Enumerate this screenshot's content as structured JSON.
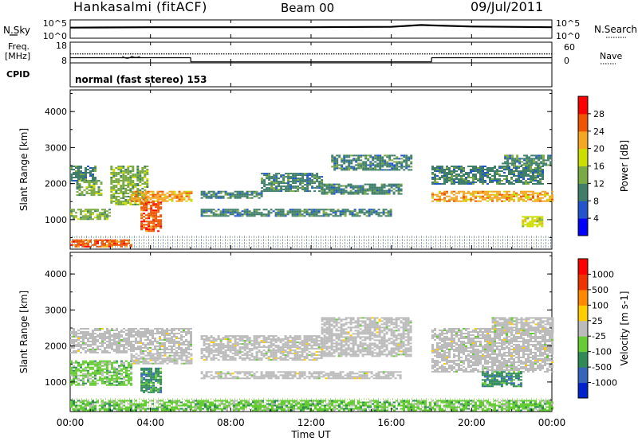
{
  "header": {
    "station": "Hankasalmi (fitACF)",
    "beam": "Beam 00",
    "date": "09/Jul/2011"
  },
  "left_labels": {
    "nsky": "N.Sky",
    "freq_line1": "Freq.",
    "freq_line2": "[MHz]",
    "cpid": "CPID"
  },
  "right_labels": {
    "nsearch": "N.Search",
    "nave": "Nave"
  },
  "cpid_text": "normal (fast stereo) 153",
  "colors": {
    "power_scale": [
      "#0000ff",
      "#2255cc",
      "#3f7f6a",
      "#7aaa44",
      "#ccdd00",
      "#f5a623",
      "#ee5500",
      "#ff0000"
    ],
    "velocity_scale": [
      "#0022cc",
      "#3366bb",
      "#2e8b57",
      "#66cc33",
      "#bbbbbb",
      "#ffcc00",
      "#ff8800",
      "#ee3300",
      "#ff0000"
    ],
    "ground_scatter": "#bbbbbb"
  },
  "chart_data": [
    {
      "type": "line",
      "name": "N.Sky / N.Search",
      "y_ticks_left": [
        "10^5",
        "10^0"
      ],
      "y_ticks_right": [
        "10^5",
        "10^0"
      ],
      "x": [
        0,
        4,
        8,
        12,
        16,
        17.5,
        18,
        20,
        24
      ],
      "values": [
        2.9,
        3.0,
        3.0,
        3.0,
        3.1,
        3.6,
        3.5,
        3.2,
        3.0
      ]
    },
    {
      "type": "line",
      "name": "Freq / Nave",
      "y_ticks_left": [
        "18",
        "8"
      ],
      "y_ticks_right": [
        "60",
        "0"
      ],
      "x": [
        0,
        2.8,
        3.2,
        6,
        6.01,
        18,
        18.01,
        24
      ],
      "freq_values": [
        10.5,
        10.5,
        10.5,
        10.5,
        8.5,
        8.5,
        10.5,
        10.5
      ],
      "nave_values": [
        26,
        26,
        26,
        26,
        26,
        26,
        26,
        26
      ]
    },
    {
      "type": "heatmap",
      "name": "Power",
      "ylabel": "Slant Range [km]",
      "yticks": [
        "1000",
        "2000",
        "3000",
        "4000"
      ],
      "ylim": [
        180,
        4600
      ],
      "xlim": [
        0,
        24
      ],
      "colorbar_label": "Power [dB]",
      "colorbar_ticks": [
        "4",
        "8",
        "12",
        "16",
        "20",
        "24",
        "28"
      ],
      "bands": [
        {
          "t0": 0.0,
          "t1": 1.2,
          "r0": 2100,
          "r1": 2500,
          "level": 2
        },
        {
          "t0": 0.3,
          "t1": 1.5,
          "r0": 1700,
          "r1": 2100,
          "level": 3
        },
        {
          "t0": 0.0,
          "t1": 2.0,
          "r0": 1000,
          "r1": 1300,
          "level": 3
        },
        {
          "t0": 0.0,
          "t1": 3.0,
          "r0": 250,
          "r1": 450,
          "level": 6
        },
        {
          "t0": 2.0,
          "t1": 3.8,
          "r0": 1400,
          "r1": 2500,
          "level": 3
        },
        {
          "t0": 3.0,
          "t1": 6.0,
          "r0": 1500,
          "r1": 1800,
          "level": 5
        },
        {
          "t0": 3.5,
          "t1": 4.5,
          "r0": 700,
          "r1": 1500,
          "level": 6
        },
        {
          "t0": 6.5,
          "t1": 16.0,
          "r0": 1100,
          "r1": 1300,
          "level": 2
        },
        {
          "t0": 6.5,
          "t1": 9.5,
          "r0": 1600,
          "r1": 1800,
          "level": 2
        },
        {
          "t0": 9.5,
          "t1": 12.5,
          "r0": 1800,
          "r1": 2300,
          "level": 2
        },
        {
          "t0": 12.5,
          "t1": 16.5,
          "r0": 1700,
          "r1": 2000,
          "level": 2
        },
        {
          "t0": 13.0,
          "t1": 17.0,
          "r0": 2400,
          "r1": 2800,
          "level": 2
        },
        {
          "t0": 18.0,
          "t1": 24.0,
          "r0": 1500,
          "r1": 1800,
          "level": 5
        },
        {
          "t0": 18.0,
          "t1": 23.5,
          "r0": 2000,
          "r1": 2500,
          "level": 2
        },
        {
          "t0": 21.5,
          "t1": 24.0,
          "r0": 2500,
          "r1": 2800,
          "level": 2
        },
        {
          "t0": 22.5,
          "t1": 23.5,
          "r0": 800,
          "r1": 1100,
          "level": 4
        }
      ]
    },
    {
      "type": "heatmap",
      "name": "Velocity",
      "ylabel": "Slant Range [km]",
      "yticks": [
        "1000",
        "2000",
        "3000",
        "4000"
      ],
      "ylim": [
        180,
        4600
      ],
      "xlim": [
        0,
        24
      ],
      "colorbar_label": "Velocity [m s-1]",
      "colorbar_ticks": [
        "1000",
        "500",
        "100",
        "25",
        "-25",
        "-100",
        "-500",
        "-1000"
      ],
      "bands": [
        {
          "t0": 0.0,
          "t1": 6.0,
          "r0": 1800,
          "r1": 2500,
          "level": 4
        },
        {
          "t0": 0.0,
          "t1": 3.0,
          "r0": 900,
          "r1": 1600,
          "level": 3
        },
        {
          "t0": 3.0,
          "t1": 6.0,
          "r0": 1500,
          "r1": 1800,
          "level": 4
        },
        {
          "t0": 3.5,
          "t1": 4.5,
          "r0": 700,
          "r1": 1400,
          "level": 2
        },
        {
          "t0": 0.0,
          "t1": 24.0,
          "r0": 200,
          "r1": 500,
          "level": 3
        },
        {
          "t0": 6.5,
          "t1": 16.5,
          "r0": 1100,
          "r1": 1300,
          "level": 4
        },
        {
          "t0": 6.5,
          "t1": 12.5,
          "r0": 1600,
          "r1": 2300,
          "level": 4
        },
        {
          "t0": 12.5,
          "t1": 17.0,
          "r0": 1700,
          "r1": 2800,
          "level": 4
        },
        {
          "t0": 18.0,
          "t1": 24.0,
          "r0": 1300,
          "r1": 2500,
          "level": 4
        },
        {
          "t0": 20.5,
          "t1": 22.5,
          "r0": 900,
          "r1": 1300,
          "level": 2
        },
        {
          "t0": 21.0,
          "t1": 24.0,
          "r0": 2400,
          "r1": 2800,
          "level": 4
        }
      ]
    }
  ],
  "x_axis": {
    "ticks": [
      "00:00",
      "04:00",
      "08:00",
      "12:00",
      "16:00",
      "20:00",
      "00:00"
    ],
    "label": "Time UT"
  }
}
